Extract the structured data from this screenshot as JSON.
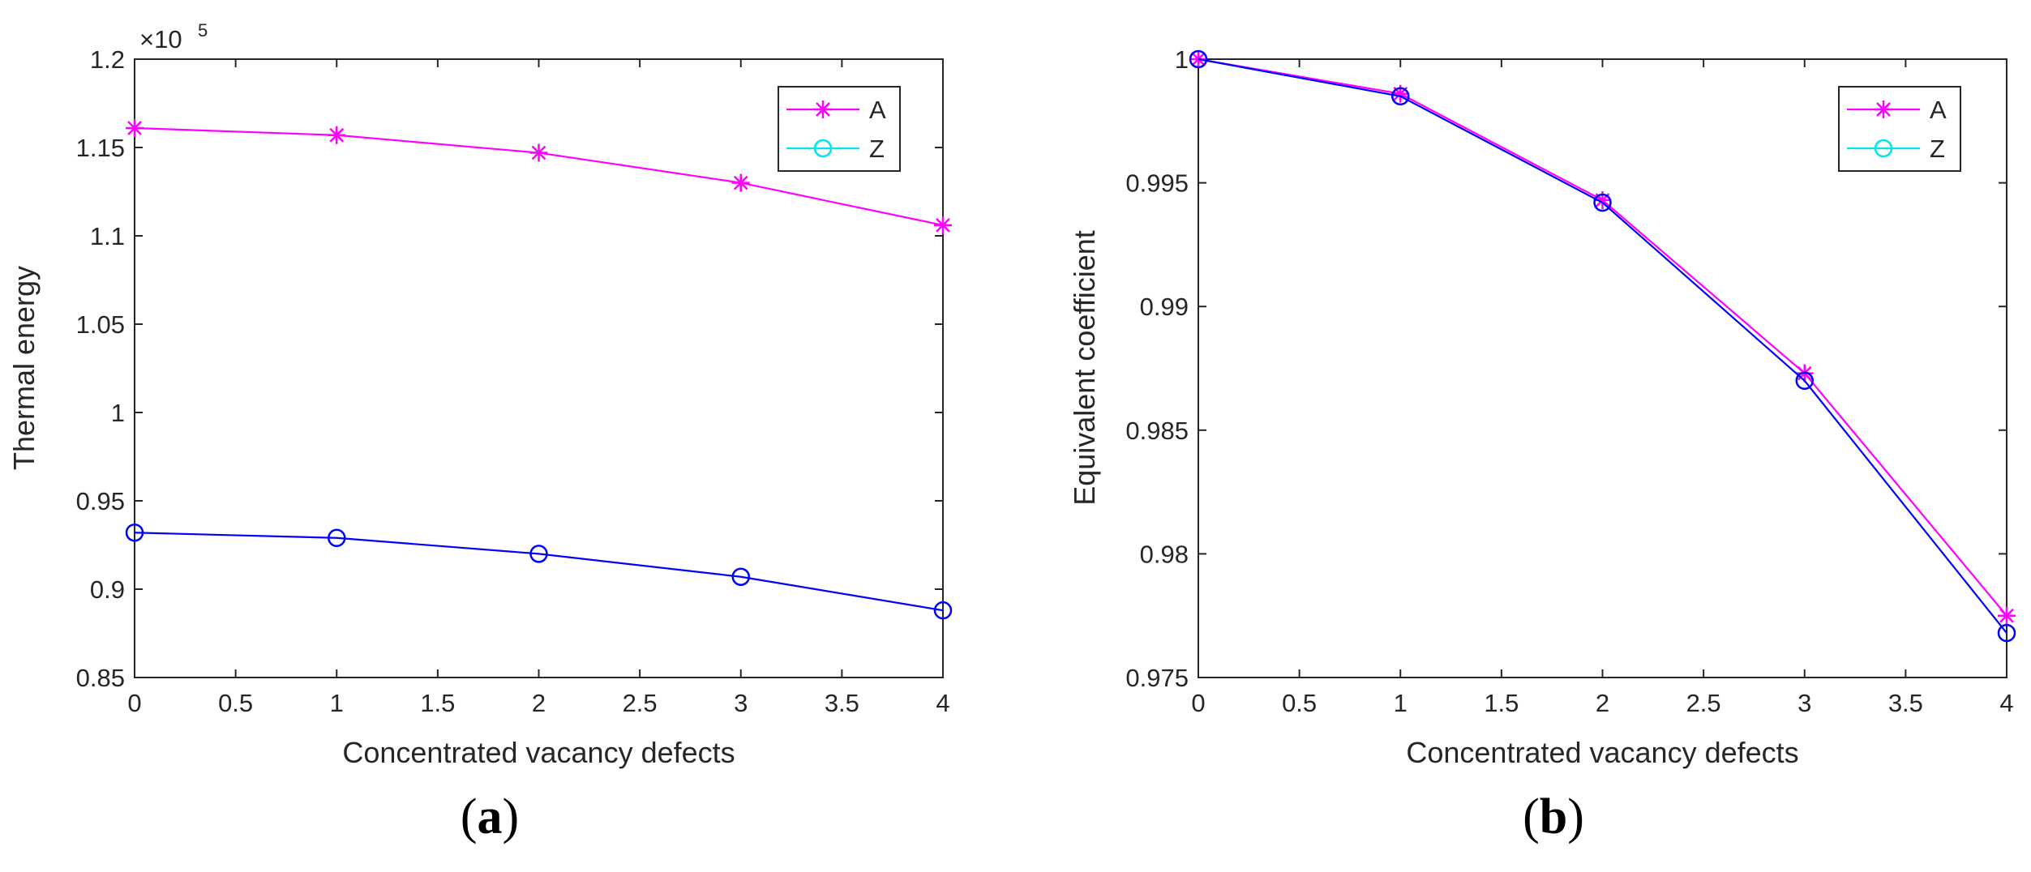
{
  "chart_data": [
    {
      "type": "line",
      "panel": "a",
      "caption_open": "(",
      "caption_letter": "a",
      "caption_close": ")",
      "xlabel": "Concentrated vacancy defects",
      "ylabel": "Thermal energy",
      "exponent_base": "×10",
      "exponent_power": "5",
      "xlim": [
        0,
        4
      ],
      "ylim": [
        0.85,
        1.2
      ],
      "xticks": [
        0,
        0.5,
        1,
        1.5,
        2,
        2.5,
        3,
        3.5,
        4
      ],
      "xtick_labels": [
        "0",
        "0.5",
        "1",
        "1.5",
        "2",
        "2.5",
        "3",
        "3.5",
        "4"
      ],
      "yticks": [
        0.85,
        0.9,
        0.95,
        1,
        1.05,
        1.1,
        1.15,
        1.2
      ],
      "ytick_labels": [
        "0.85",
        "0.9",
        "0.95",
        "1",
        "1.05",
        "1.1",
        "1.15",
        "1.2"
      ],
      "x": [
        0,
        1,
        2,
        3,
        4
      ],
      "series": [
        {
          "name": "A",
          "legend_color": "#ff00ff",
          "color": "#ff00ff",
          "marker": "star",
          "values": [
            1.161,
            1.157,
            1.147,
            1.13,
            1.106
          ]
        },
        {
          "name": "Z",
          "legend_color": "#00e5ee",
          "color": "#0000ff",
          "marker": "circle",
          "values": [
            0.932,
            0.929,
            0.92,
            0.907,
            0.888
          ]
        }
      ]
    },
    {
      "type": "line",
      "panel": "b",
      "caption_open": "(",
      "caption_letter": "b",
      "caption_close": ")",
      "xlabel": "Concentrated vacancy defects",
      "ylabel": "Equivalent coefficient",
      "exponent_base": "",
      "exponent_power": "",
      "xlim": [
        0,
        4
      ],
      "ylim": [
        0.975,
        1.0
      ],
      "xticks": [
        0,
        0.5,
        1,
        1.5,
        2,
        2.5,
        3,
        3.5,
        4
      ],
      "xtick_labels": [
        "0",
        "0.5",
        "1",
        "1.5",
        "2",
        "2.5",
        "3",
        "3.5",
        "4"
      ],
      "yticks": [
        0.975,
        0.98,
        0.985,
        0.99,
        0.995,
        1.0
      ],
      "ytick_labels": [
        "0.975",
        "0.98",
        "0.985",
        "0.99",
        "0.995",
        "1"
      ],
      "x": [
        0,
        1,
        2,
        3,
        4
      ],
      "series": [
        {
          "name": "A",
          "legend_color": "#ff00ff",
          "color": "#ff00ff",
          "marker": "star",
          "values": [
            1.0,
            0.9986,
            0.9943,
            0.9873,
            0.9775
          ]
        },
        {
          "name": "Z",
          "legend_color": "#00e5ee",
          "color": "#0000ff",
          "marker": "circle",
          "values": [
            1.0,
            0.9985,
            0.9942,
            0.987,
            0.9768
          ]
        }
      ]
    }
  ]
}
